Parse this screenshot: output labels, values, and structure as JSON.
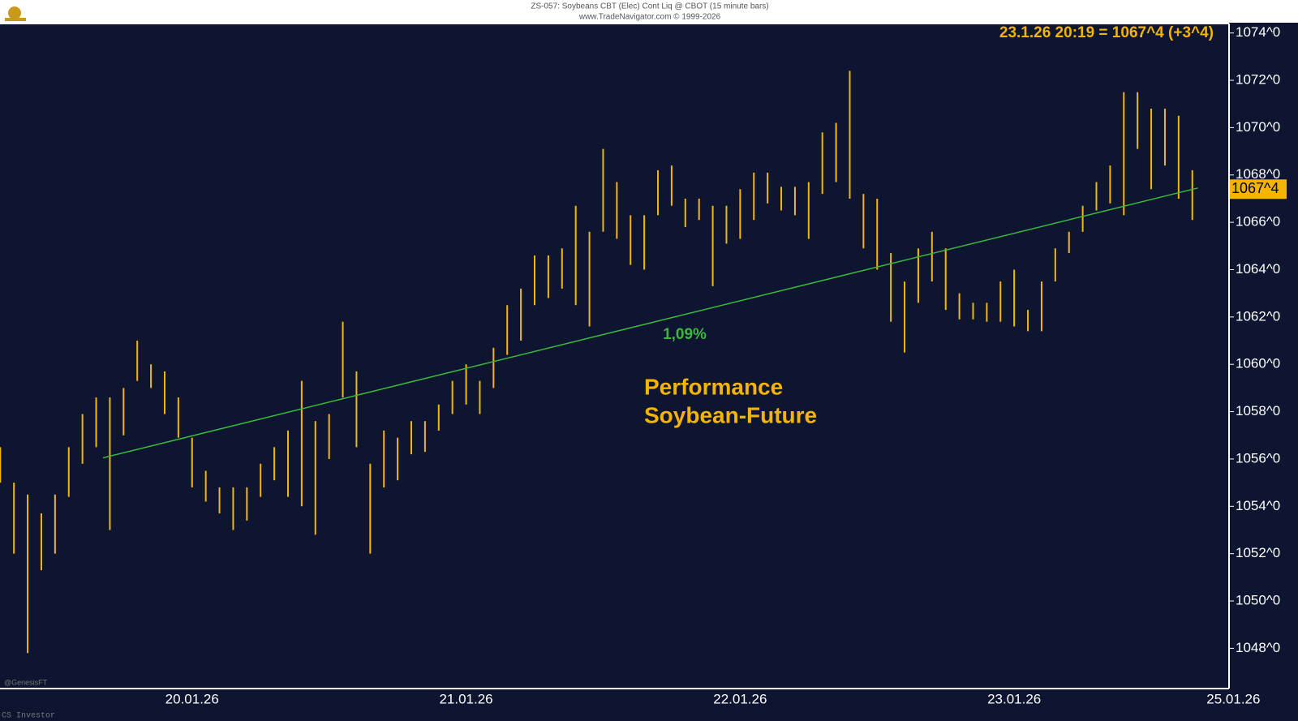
{
  "header": {
    "title": "ZS-057: Soybeans CBT (Elec) Cont Liq @ CBOT (15 minute bars)",
    "source": "www.TradeNavigator.com © 1999-2026"
  },
  "footer": {
    "credit": "@GenesisFT",
    "brand": "CS Investor"
  },
  "chart_data": {
    "type": "ohlc",
    "quote": "23.1.26 20:19 = 1067^4 (+3^4)",
    "last_price": {
      "value": 1067.4,
      "label": "1067^4"
    },
    "annotation": [
      "Performance",
      "Soybean-Future"
    ],
    "color": "#f5b800",
    "categories": [
      null,
      null,
      null,
      null,
      null,
      null,
      null,
      null,
      null,
      null,
      null,
      null,
      null,
      null,
      "20.01.26",
      null,
      null,
      null,
      null,
      null,
      null,
      null,
      null,
      null,
      null,
      null,
      null,
      null,
      null,
      null,
      null,
      null,
      null,
      null,
      "21.01.26",
      null,
      null,
      null,
      null,
      null,
      null,
      null,
      null,
      null,
      null,
      null,
      null,
      null,
      null,
      null,
      null,
      null,
      null,
      null,
      "22.01.26",
      null,
      null,
      null,
      null,
      null,
      null,
      null,
      null,
      null,
      null,
      null,
      null,
      null,
      null,
      null,
      null,
      null,
      null,
      null,
      "23.01.26",
      null,
      null,
      null,
      null,
      null,
      null,
      null,
      null,
      null,
      null,
      null,
      null,
      null,
      null,
      null,
      "25.01.26"
    ],
    "high": [
      1056.5,
      1055,
      1054.5,
      1053.7,
      1054.5,
      1056.5,
      1057.9,
      1058.6,
      1058.6,
      1059,
      1061,
      1060,
      1059.7,
      1058.6,
      1056.9,
      1055.5,
      1054.8,
      1054.8,
      1054.8,
      1055.8,
      1056.5,
      1057.2,
      1059.3,
      1057.6,
      1057.9,
      1061.8,
      1059.7,
      1055.8,
      1057.2,
      1056.9,
      1057.6,
      1057.6,
      1058.3,
      1059.3,
      1060,
      1059.3,
      1060.7,
      1062.5,
      1063.2,
      1064.6,
      1064.6,
      1064.9,
      1066.7,
      1065.6,
      1069.1,
      1067.7,
      1066.3,
      1066.3,
      1068.2,
      1068.4,
      1067,
      1067,
      1066.7,
      1066.7,
      1067.4,
      1068.1,
      1068.1,
      1067.5,
      1067.5,
      1067.7,
      1069.8,
      1070.2,
      1072.4,
      1067.2,
      1067,
      1064.7,
      1063.5,
      1064.9,
      1065.6,
      1064.9,
      1063,
      1062.6,
      1062.6,
      1063.5,
      1064,
      1062.3,
      1063.5,
      1064.9,
      1065.6,
      1066.7,
      1067.7,
      1068.4,
      1071.5,
      1071.5,
      1070.8,
      1070.8,
      1070.5,
      1068.2,
      null,
      null,
      null
    ],
    "low": [
      1055,
      1052,
      1047.8,
      1051.3,
      1052,
      1054.4,
      1055.8,
      1056.5,
      1053,
      1057,
      1059.3,
      1059,
      1057.9,
      1056.9,
      1054.8,
      1054.2,
      1053.7,
      1053,
      1053.4,
      1054.4,
      1055.1,
      1054.4,
      1054,
      1052.8,
      1056,
      1058.6,
      1056.5,
      1052,
      1054.8,
      1055.1,
      1056.2,
      1056.3,
      1057.2,
      1057.9,
      1058.3,
      1057.9,
      1059,
      1060.4,
      1061,
      1062.5,
      1062.8,
      1063.2,
      1062.5,
      1061.6,
      1065.6,
      1065.3,
      1064.2,
      1064,
      1066.3,
      1066.7,
      1065.8,
      1066.1,
      1063.3,
      1065.1,
      1065.3,
      1066.1,
      1066.8,
      1066.5,
      1066.3,
      1065.3,
      1067.2,
      1067.7,
      1067,
      1064.9,
      1064,
      1061.8,
      1060.5,
      1062.6,
      1063.5,
      1062.3,
      1061.9,
      1061.9,
      1061.8,
      1061.8,
      1061.6,
      1061.4,
      1061.4,
      1063.5,
      1064.7,
      1065.6,
      1066.5,
      1066.8,
      1066.3,
      1069.1,
      1067.4,
      1068.4,
      1067,
      1066.1,
      null,
      null,
      null
    ],
    "trendline": {
      "x": [
        7.5,
        87.4
      ],
      "values": [
        1056.05,
        1067.45
      ],
      "color": "#3cb83c",
      "label": "1,09%"
    },
    "ylim": [
      1046.3,
      1074.4
    ],
    "yticks": [
      {
        "value": 1048,
        "label": "1048^0"
      },
      {
        "value": 1050,
        "label": "1050^0"
      },
      {
        "value": 1052,
        "label": "1052^0"
      },
      {
        "value": 1054,
        "label": "1054^0"
      },
      {
        "value": 1056,
        "label": "1056^0"
      },
      {
        "value": 1058,
        "label": "1058^0"
      },
      {
        "value": 1060,
        "label": "1060^0"
      },
      {
        "value": 1062,
        "label": "1062^0"
      },
      {
        "value": 1064,
        "label": "1064^0"
      },
      {
        "value": 1066,
        "label": "1066^0"
      },
      {
        "value": 1068,
        "label": "1068^0"
      },
      {
        "value": 1070,
        "label": "1070^0"
      },
      {
        "value": 1072,
        "label": "1072^0"
      },
      {
        "value": 1074,
        "label": "1074^0"
      }
    ]
  }
}
